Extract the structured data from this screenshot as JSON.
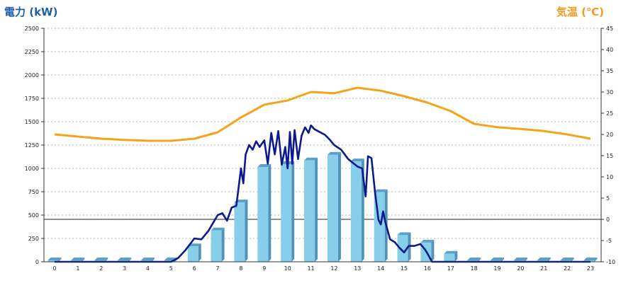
{
  "chart_data": {
    "type": "bar",
    "title_left": "電力 (kW)",
    "title_right": "気温 (℃)",
    "categories": [
      "0",
      "1",
      "2",
      "3",
      "4",
      "5",
      "6",
      "7",
      "8",
      "9",
      "10",
      "11",
      "12",
      "13",
      "14",
      "15",
      "16",
      "17",
      "18",
      "19",
      "20",
      "21",
      "22",
      "23"
    ],
    "y_left_range": [
      0,
      2500
    ],
    "y_left_ticks": [
      "0",
      "250",
      "500",
      "750",
      "1000",
      "1250",
      "1500",
      "1750",
      "2000",
      "2250",
      "2500"
    ],
    "y_right_range": [
      -10,
      45
    ],
    "y_right_ticks": [
      "-10",
      "-5",
      "0",
      "5",
      "10",
      "15",
      "20",
      "25",
      "30",
      "35",
      "40",
      "45"
    ],
    "grid": true,
    "bars": {
      "color": "#87ceeb",
      "values": [
        0,
        0,
        0,
        0,
        0,
        0,
        150,
        320,
        620,
        1000,
        1030,
        1070,
        1130,
        1060,
        730,
        270,
        190,
        70,
        0,
        0,
        0,
        0,
        0,
        0
      ]
    },
    "power_line": {
      "color": "#0d1a8c",
      "x": [
        0,
        1,
        2,
        3,
        4,
        5,
        5.3,
        5.6,
        6,
        6.3,
        6.6,
        7,
        7.2,
        7.4,
        7.6,
        7.8,
        8,
        8.1,
        8.2,
        8.35,
        8.5,
        8.65,
        8.8,
        9,
        9.15,
        9.3,
        9.45,
        9.6,
        9.75,
        9.9,
        10,
        10.1,
        10.2,
        10.3,
        10.45,
        10.6,
        10.75,
        10.9,
        11,
        11.15,
        11.3,
        11.45,
        11.6,
        11.8,
        12,
        12.3,
        12.6,
        13,
        13.2,
        13.35,
        13.45,
        13.6,
        13.75,
        13.9,
        14,
        14.1,
        14.2,
        14.4,
        14.6,
        14.8,
        15,
        15.2,
        15.45,
        15.7,
        15.9,
        16,
        16.2,
        16.4,
        16.6,
        16.8,
        17,
        17.2,
        17.5,
        18,
        19,
        20,
        21,
        22,
        23
      ],
      "y": [
        0,
        0,
        0,
        0,
        0,
        0,
        40,
        120,
        250,
        240,
        330,
        500,
        520,
        440,
        580,
        600,
        1000,
        840,
        1150,
        1250,
        1200,
        1290,
        1230,
        1300,
        1050,
        1380,
        1150,
        1400,
        1040,
        1230,
        1000,
        1390,
        1050,
        1410,
        1100,
        1350,
        1440,
        1380,
        1460,
        1420,
        1400,
        1380,
        1360,
        1310,
        1250,
        1200,
        1100,
        1020,
        1000,
        700,
        1130,
        1110,
        750,
        450,
        400,
        540,
        420,
        240,
        210,
        150,
        100,
        170,
        170,
        190,
        130,
        90,
        0,
        0,
        0,
        0,
        0,
        0,
        0,
        0,
        0,
        0,
        0,
        0,
        0
      ]
    },
    "temperature_line": {
      "color": "#f5a31a",
      "x": [
        0,
        1,
        2,
        3,
        4,
        5,
        6,
        7,
        8,
        9,
        10,
        11,
        12,
        13,
        14,
        15,
        16,
        17,
        18,
        19,
        20,
        21,
        22,
        23
      ],
      "y": [
        20,
        19.5,
        19,
        18.7,
        18.5,
        18.5,
        19,
        20.5,
        24,
        27,
        28,
        30,
        29.7,
        31,
        30.3,
        29,
        27.5,
        25.5,
        22.5,
        21.7,
        21.3,
        20.8,
        20,
        19
      ]
    }
  }
}
